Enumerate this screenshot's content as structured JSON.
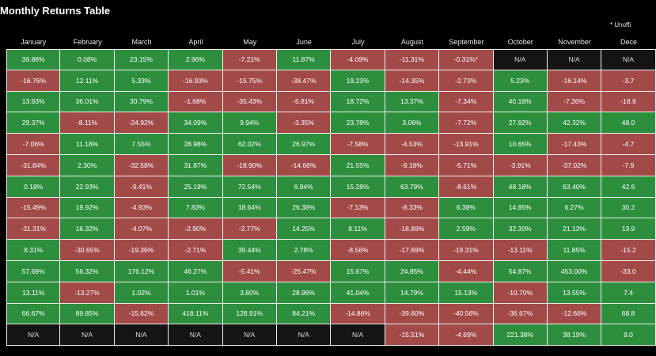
{
  "title": "Monthly Returns Table",
  "note": "* Unoffi",
  "colors": {
    "positive": "#2d8f3d",
    "negative": "#a24a48",
    "na": "#151515",
    "background": "#000000"
  },
  "months": [
    "January",
    "February",
    "March",
    "April",
    "May",
    "June",
    "July",
    "August",
    "September",
    "October",
    "November",
    "Dece"
  ],
  "rows": [
    [
      "39.88%",
      "0.08%",
      "23.15%",
      "2.96%",
      "-7.21%",
      "11.87%",
      "-4.09%",
      "-11.31%",
      "-0.31%*",
      "N/A",
      "N/A",
      "N/A"
    ],
    [
      "-16.76%",
      "12.11%",
      "5.33%",
      "-16.93%",
      "-15.75%",
      "-38.47%",
      "19.23%",
      "-14.35%",
      "-2.73%",
      "5.23%",
      "-16.14%",
      "-3.7"
    ],
    [
      "13.93%",
      "36.01%",
      "30.79%",
      "-1.68%",
      "-35.43%",
      "-5.81%",
      "18.72%",
      "13.37%",
      "-7.34%",
      "40.16%",
      "-7.26%",
      "-18.9"
    ],
    [
      "29.37%",
      "-8.11%",
      "-24.92%",
      "34.09%",
      "9.94%",
      "-3.35%",
      "23.78%",
      "3.06%",
      "-7.72%",
      "27.92%",
      "42.32%",
      "48.0"
    ],
    [
      "-7.06%",
      "11.18%",
      "7.55%",
      "28.98%",
      "62.02%",
      "26.97%",
      "-7.58%",
      "-4.53%",
      "-13.91%",
      "10.65%",
      "-17.43%",
      "-4.7"
    ],
    [
      "-31.84%",
      "2.30%",
      "-32.58%",
      "31.87%",
      "-18.90%",
      "-14.66%",
      "21.55%",
      "-9.18%",
      "-5.71%",
      "-3.91%",
      "-37.02%",
      "-7.9"
    ],
    [
      "0.18%",
      "22.93%",
      "-9.41%",
      "25.19%",
      "72.54%",
      "6.94%",
      "15.28%",
      "63.79%",
      "-8.61%",
      "48.18%",
      "63.40%",
      "42.6"
    ],
    [
      "-15.49%",
      "19.92%",
      "-4.93%",
      "7.83%",
      "18.64%",
      "26.38%",
      "-7.13%",
      "-8.33%",
      "6.38%",
      "14.85%",
      "6.27%",
      "30.2"
    ],
    [
      "-31.31%",
      "16.32%",
      "-4.07%",
      "-2.90%",
      "-2.77%",
      "14.25%",
      "8.11%",
      "-18.89%",
      "2.59%",
      "32.30%",
      "21.13%",
      "13.9"
    ],
    [
      "8.31%",
      "-30.65%",
      "-19.36%",
      "-2.71%",
      "39.44%",
      "2.78%",
      "-8.56%",
      "-17.69%",
      "-19.31%",
      "-13.11%",
      "11.85%",
      "-15.2"
    ],
    [
      "57.69%",
      "56.32%",
      "176.12%",
      "46.27%",
      "-5.41%",
      "-25.47%",
      "15.67%",
      "24.85%",
      "-4.44%",
      "54.87%",
      "453.00%",
      "-33.0"
    ],
    [
      "13.11%",
      "-13.27%",
      "1.02%",
      "1.01%",
      "3.80%",
      "28.96%",
      "41.04%",
      "14.79%",
      "15.13%",
      "-10.70%",
      "13.55%",
      "7.4"
    ],
    [
      "66.67%",
      "89.85%",
      "-15.62%",
      "418.11%",
      "128.91%",
      "84.21%",
      "-14.86%",
      "-39.60%",
      "-40.56%",
      "-36.67%",
      "-12.66%",
      "68.8"
    ],
    [
      "N/A",
      "N/A",
      "N/A",
      "N/A",
      "N/A",
      "N/A",
      "N/A",
      "-15.51%",
      "-4.69%",
      "221.38%",
      "38.19%",
      "9.0"
    ]
  ]
}
